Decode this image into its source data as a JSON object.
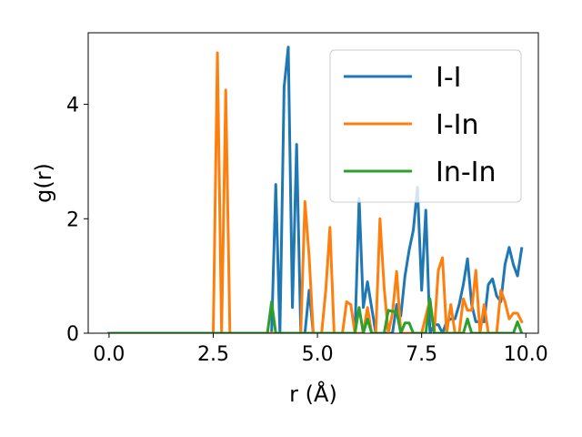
{
  "chart_data": {
    "type": "line",
    "title": "",
    "xlabel": "r (Å)",
    "ylabel": "g(r)",
    "xlim": [
      -0.5,
      10.3
    ],
    "ylim": [
      0,
      5.25
    ],
    "xticks": [
      0.0,
      2.5,
      5.0,
      7.5,
      10.0
    ],
    "xtick_labels": [
      "0.0",
      "2.5",
      "5.0",
      "7.5",
      "10.0"
    ],
    "yticks": [
      0,
      2,
      4
    ],
    "ytick_labels": [
      "0",
      "2",
      "4"
    ],
    "grid": false,
    "legend_position": "top-right",
    "series": [
      {
        "name": "I-I",
        "color": "#1f77b4",
        "x": [
          0.0,
          3.8,
          3.9,
          4.0,
          4.1,
          4.2,
          4.3,
          4.4,
          4.5,
          4.6,
          4.7,
          4.8,
          4.9,
          5.0,
          5.9,
          6.0,
          6.1,
          6.2,
          6.3,
          6.4,
          6.5,
          6.6,
          6.7,
          6.8,
          6.9,
          7.0,
          7.1,
          7.2,
          7.3,
          7.4,
          7.5,
          7.6,
          7.7,
          7.8,
          7.9,
          8.0,
          8.1,
          8.2,
          8.3,
          8.4,
          8.5,
          8.6,
          8.7,
          8.8,
          8.9,
          9.0,
          9.1,
          9.2,
          9.3,
          9.4,
          9.5,
          9.6,
          9.7,
          9.8,
          9.9
        ],
        "y": [
          0,
          0,
          0,
          2.6,
          0,
          4.3,
          5.0,
          0.45,
          3.3,
          0,
          0,
          0.75,
          0,
          0,
          0,
          2.35,
          0.45,
          0.9,
          0.45,
          0,
          0,
          0,
          0,
          0,
          0.5,
          0.3,
          1.0,
          1.45,
          1.8,
          2.55,
          0.75,
          2.15,
          0,
          0.15,
          0.15,
          0,
          0.2,
          0.25,
          0.25,
          0.5,
          0.85,
          1.3,
          0.5,
          0.2,
          0.2,
          0.2,
          0.85,
          0.95,
          0.65,
          0.55,
          1.2,
          1.5,
          1.2,
          1.0,
          1.48
        ]
      },
      {
        "name": "I-In",
        "color": "#ff7f0e",
        "x": [
          0.0,
          2.5,
          2.6,
          2.7,
          2.8,
          2.9,
          3.0,
          4.5,
          4.6,
          4.7,
          4.8,
          4.9,
          5.0,
          5.1,
          5.2,
          5.3,
          5.4,
          5.5,
          5.6,
          5.7,
          5.8,
          5.9,
          6.0,
          6.1,
          6.2,
          6.3,
          6.4,
          6.5,
          6.6,
          6.7,
          6.8,
          6.9,
          7.0,
          7.1,
          7.2,
          7.3,
          7.4,
          7.5,
          7.6,
          7.7,
          7.8,
          7.9,
          8.0,
          8.1,
          8.2,
          8.3,
          8.4,
          8.5,
          8.6,
          8.7,
          8.8,
          8.9,
          9.0,
          9.1,
          9.2,
          9.3,
          9.4,
          9.5,
          9.6,
          9.7,
          9.8,
          9.9
        ],
        "y": [
          0,
          0,
          4.9,
          0,
          4.25,
          0,
          0,
          0,
          0,
          2.3,
          1.35,
          0,
          0,
          0,
          0.75,
          1.85,
          0,
          0,
          0,
          0.55,
          0.5,
          0,
          0,
          0,
          0.45,
          0,
          0,
          2.0,
          0.8,
          0,
          0.35,
          1.08,
          0,
          0,
          0,
          0,
          0,
          0,
          0.3,
          0.58,
          0,
          1.1,
          1.32,
          0,
          0.5,
          0,
          0,
          0.6,
          0.4,
          0.4,
          1.1,
          0,
          0.5,
          0,
          0,
          0,
          0.75,
          0.55,
          0.25,
          0.35,
          0.35,
          0.2
        ]
      },
      {
        "name": "In-In",
        "color": "#2ca02c",
        "x": [
          0.0,
          3.8,
          3.9,
          4.0,
          4.1,
          5.9,
          6.0,
          6.1,
          6.2,
          6.3,
          6.4,
          6.5,
          6.6,
          6.7,
          6.8,
          6.9,
          7.0,
          7.1,
          7.2,
          7.3,
          7.4,
          7.5,
          7.6,
          7.7,
          7.8,
          7.9,
          8.0,
          8.1,
          8.2,
          8.3,
          8.4,
          8.5,
          8.6,
          8.7,
          8.8,
          9.7,
          9.8,
          9.9
        ],
        "y": [
          0,
          0,
          0.55,
          0,
          0,
          0,
          0.45,
          0,
          0.25,
          0,
          0,
          0,
          0,
          0.4,
          0.38,
          0.38,
          0,
          0.18,
          0.18,
          0,
          0,
          0,
          0,
          0.6,
          0,
          0,
          0,
          0,
          0,
          0,
          0,
          0,
          0.25,
          0,
          0,
          0,
          0.2,
          0
        ]
      }
    ]
  }
}
